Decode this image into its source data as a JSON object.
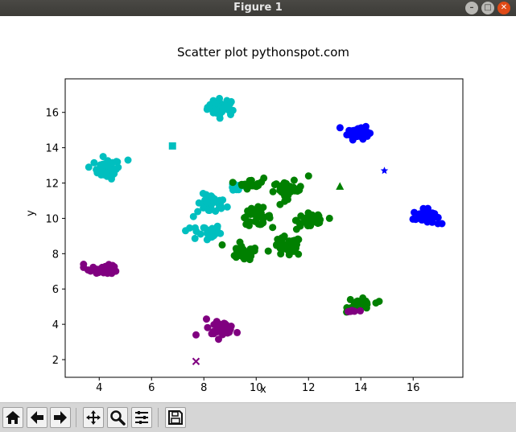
{
  "window": {
    "title": "Figure 1",
    "controls": [
      "minimize-icon",
      "maximize-icon",
      "close-icon"
    ]
  },
  "toolbar": {
    "buttons": [
      {
        "name": "home-icon"
      },
      {
        "name": "back-arrow-icon"
      },
      {
        "name": "forward-arrow-icon"
      },
      {
        "name": "pan-icon"
      },
      {
        "name": "zoom-icon"
      },
      {
        "name": "configure-subplots-icon"
      },
      {
        "name": "save-icon"
      }
    ]
  },
  "chart_data": {
    "type": "scatter",
    "title": "Scatter plot pythonspot.com",
    "xlabel": "x",
    "ylabel": "y",
    "xlim": [
      2.7,
      17.9
    ],
    "ylim": [
      1.0,
      17.9
    ],
    "x_ticks": [
      4,
      6,
      8,
      10,
      12,
      14,
      16
    ],
    "y_ticks": [
      2,
      4,
      6,
      8,
      10,
      12,
      14,
      16
    ],
    "grid": false,
    "clusters": [
      {
        "color": "#00bfbf",
        "center": [
          8.7,
          16.3
        ],
        "spread": [
          0.35,
          0.3
        ],
        "count": 40
      },
      {
        "color": "#00bfbf",
        "center": [
          4.3,
          12.8
        ],
        "spread": [
          0.3,
          0.35
        ],
        "count": 35
      },
      {
        "color": "#00bfbf",
        "center": [
          8.3,
          10.8
        ],
        "spread": [
          0.35,
          0.35
        ],
        "count": 35
      },
      {
        "color": "#00bfbf",
        "center": [
          8.1,
          9.2
        ],
        "spread": [
          0.35,
          0.3
        ],
        "count": 30
      },
      {
        "color": "#00bfbf",
        "center": [
          9.3,
          11.8
        ],
        "spread": [
          0.25,
          0.2
        ],
        "count": 14
      },
      {
        "color": "#0000ff",
        "center": [
          13.9,
          14.9
        ],
        "spread": [
          0.25,
          0.25
        ],
        "count": 40
      },
      {
        "color": "#0000ff",
        "center": [
          16.4,
          10.1
        ],
        "spread": [
          0.25,
          0.25
        ],
        "count": 40
      },
      {
        "color": "#008000",
        "center": [
          9.8,
          12.0
        ],
        "spread": [
          0.3,
          0.2
        ],
        "count": 18
      },
      {
        "color": "#008000",
        "center": [
          11.2,
          11.6
        ],
        "spread": [
          0.35,
          0.3
        ],
        "count": 35
      },
      {
        "color": "#008000",
        "center": [
          10.0,
          10.1
        ],
        "spread": [
          0.35,
          0.3
        ],
        "count": 40
      },
      {
        "color": "#008000",
        "center": [
          12.1,
          9.9
        ],
        "spread": [
          0.35,
          0.35
        ],
        "count": 35
      },
      {
        "color": "#008000",
        "center": [
          9.5,
          8.0
        ],
        "spread": [
          0.35,
          0.25
        ],
        "count": 35
      },
      {
        "color": "#008000",
        "center": [
          11.2,
          8.4
        ],
        "spread": [
          0.35,
          0.35
        ],
        "count": 35
      },
      {
        "color": "#008000",
        "center": [
          14.0,
          5.1
        ],
        "spread": [
          0.3,
          0.2
        ],
        "count": 25
      },
      {
        "color": "#800080",
        "center": [
          4.2,
          7.1
        ],
        "spread": [
          0.35,
          0.15
        ],
        "count": 40
      },
      {
        "color": "#800080",
        "center": [
          8.7,
          3.8
        ],
        "spread": [
          0.3,
          0.2
        ],
        "count": 40
      },
      {
        "color": "#800080",
        "center": [
          13.6,
          4.7
        ],
        "spread": [
          0.15,
          0.1
        ],
        "count": 6
      }
    ],
    "special_points": [
      {
        "color": "#00bfbf",
        "marker": "square",
        "x": 6.8,
        "y": 14.1
      },
      {
        "color": "#008000",
        "marker": "triangle",
        "x": 13.2,
        "y": 11.8
      },
      {
        "color": "#0000ff",
        "marker": "star",
        "x": 14.9,
        "y": 12.7
      },
      {
        "color": "#800080",
        "marker": "x",
        "x": 7.7,
        "y": 1.9
      }
    ],
    "outlier_points": [
      {
        "color": "#00bfbf",
        "x": 3.6,
        "y": 12.9
      },
      {
        "color": "#00bfbf",
        "x": 5.1,
        "y": 13.3
      },
      {
        "color": "#00bfbf",
        "x": 7.3,
        "y": 9.3
      },
      {
        "color": "#00bfbf",
        "x": 7.6,
        "y": 10.1
      },
      {
        "color": "#0000ff",
        "x": 17.1,
        "y": 9.7
      },
      {
        "color": "#800080",
        "x": 3.4,
        "y": 7.4
      },
      {
        "color": "#800080",
        "x": 7.7,
        "y": 3.4
      },
      {
        "color": "#800080",
        "x": 8.1,
        "y": 4.3
      },
      {
        "color": "#008000",
        "x": 13.6,
        "y": 5.4
      },
      {
        "color": "#008000",
        "x": 14.7,
        "y": 5.3
      },
      {
        "color": "#008000",
        "x": 12.0,
        "y": 12.4
      },
      {
        "color": "#008000",
        "x": 8.7,
        "y": 8.5
      },
      {
        "color": "#008000",
        "x": 12.8,
        "y": 10.0
      }
    ]
  }
}
